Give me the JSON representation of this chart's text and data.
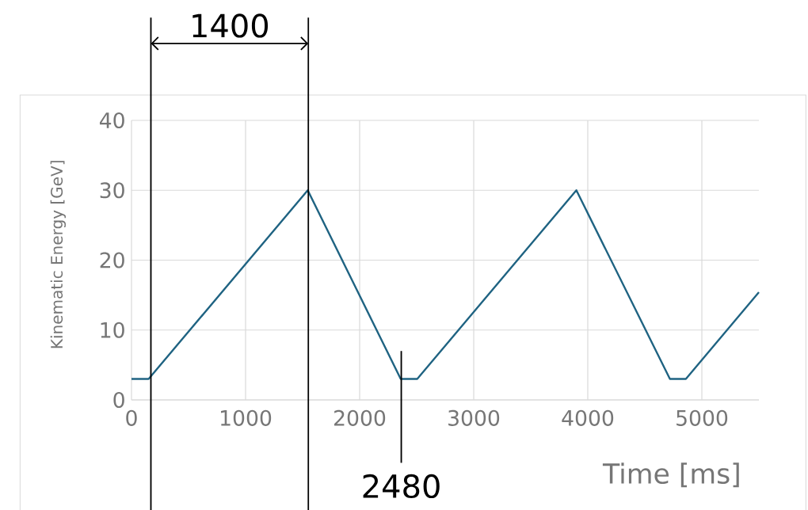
{
  "chart_data": {
    "type": "line",
    "xlabel": "Time [ms]",
    "ylabel": "Kinematic Energy [GeV]",
    "x": [
      0,
      150,
      1545,
      2360,
      2505,
      3900,
      4720,
      4860,
      5500
    ],
    "series": [
      {
        "color": "#1f6382",
        "values": [
          3,
          3,
          30,
          3,
          3,
          30,
          3,
          3,
          15.4
        ]
      }
    ],
    "xlim": [
      0,
      5500
    ],
    "xticks": [
      0,
      1000,
      2000,
      3000,
      4000,
      5000
    ],
    "ylim": [
      0,
      40
    ],
    "yticks": [
      0,
      10,
      20,
      30,
      40
    ],
    "grid": true,
    "ref_lines": [
      {
        "axis": "x",
        "value": 170,
        "color": "#000000"
      },
      {
        "axis": "x",
        "value": 1550,
        "color": "#000000"
      },
      {
        "axis": "x",
        "value": 2365,
        "color": "#000000"
      }
    ],
    "annotations": [
      "1400",
      "2480"
    ]
  }
}
